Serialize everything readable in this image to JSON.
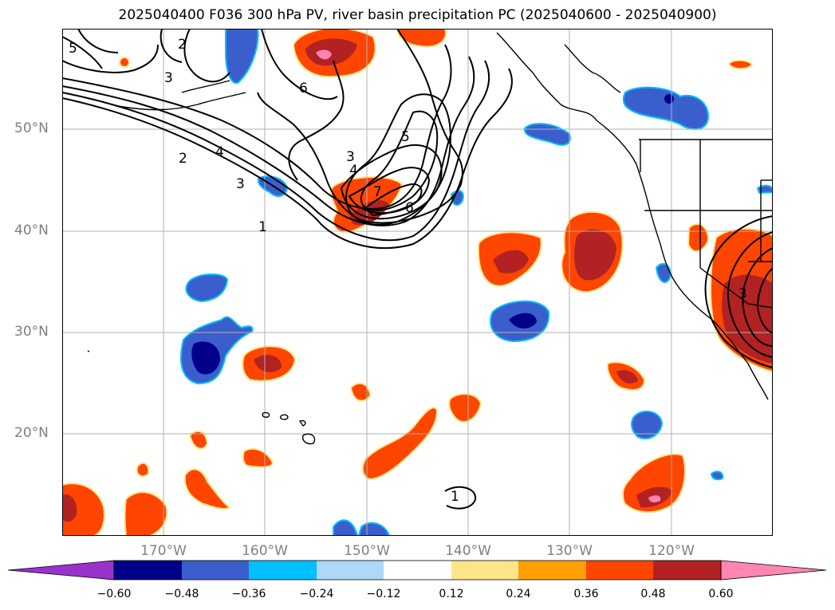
{
  "title": "2025040400 F036 300 hPa PV, river basin precipitation PC (2025040600 - 2025040900)",
  "lat_labels": [
    "50°N",
    "40°N",
    "30°N",
    "20°N"
  ],
  "lon_labels": [
    "170°W",
    "160°W",
    "150°W",
    "140°W",
    "130°W",
    "120°W"
  ],
  "contour_labels": [
    "5",
    "2",
    "3",
    "6",
    "4",
    "2",
    "3",
    "1",
    "3",
    "4",
    "5",
    "7",
    "6",
    "3",
    "1"
  ],
  "colorbar": {
    "ticks": [
      "−0.60",
      "−0.48",
      "−0.36",
      "−0.24",
      "−0.12",
      "0.12",
      "0.24",
      "0.36",
      "0.48",
      "0.60"
    ],
    "colors": [
      "#9932cc",
      "#00008b",
      "#3a5fcd",
      "#00bfff",
      "#add8f7",
      "#ffffff",
      "#ffe58a",
      "#ff9f00",
      "#ff4500",
      "#b22222",
      "#ff86b0"
    ]
  }
}
